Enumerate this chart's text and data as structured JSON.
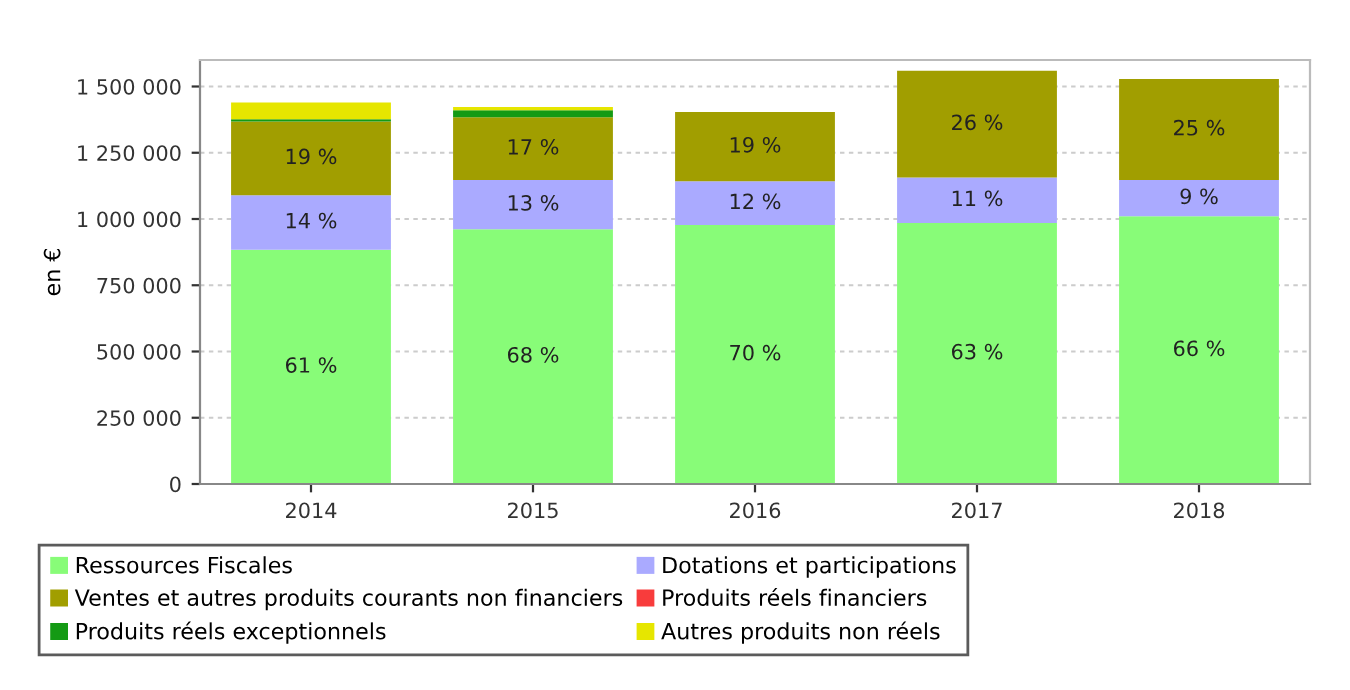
{
  "chart_data": {
    "type": "bar",
    "stacked": true,
    "ylabel": "en €",
    "categories": [
      "2014",
      "2015",
      "2016",
      "2017",
      "2018"
    ],
    "series": [
      {
        "name": "Ressources Fiscales",
        "color": "#88fc78",
        "values": [
          884000,
          961000,
          977000,
          985000,
          1010000
        ]
      },
      {
        "name": "Dotations et participations",
        "color": "#aaaaff",
        "values": [
          206000,
          186000,
          165000,
          172000,
          137000
        ]
      },
      {
        "name": "Ventes et autres produits courants non financiers",
        "color": "#a19e00",
        "values": [
          278000,
          237000,
          262000,
          402000,
          381000
        ]
      },
      {
        "name": "Produits réels financiers",
        "color": "#f83c3c",
        "values": [
          null,
          null,
          null,
          null,
          null
        ]
      },
      {
        "name": "Produits réels exceptionnels",
        "color": "#149a14",
        "values": [
          8000,
          26000,
          null,
          null,
          null
        ]
      },
      {
        "name": "Autres produits non réels",
        "color": "#e6e600",
        "values": [
          64000,
          13000,
          null,
          null,
          null
        ]
      }
    ],
    "annotations": [
      "61 %",
      "68 %",
      "70 %",
      "63 %",
      "66 %",
      "14 %",
      "13 %",
      "12 %",
      "11 %",
      "9 %",
      "19 %",
      "17 %",
      "19 %",
      "26 %",
      "25 %"
    ],
    "ylim": [
      0,
      1600000
    ],
    "yticks": [
      {
        "value": 0,
        "label": "0"
      },
      {
        "value": 250000,
        "label": "250 000"
      },
      {
        "value": 500000,
        "label": "500 000"
      },
      {
        "value": 750000,
        "label": "750 000"
      },
      {
        "value": 1000000,
        "label": "1 000 000"
      },
      {
        "value": 1250000,
        "label": "1 250 000"
      },
      {
        "value": 1500000,
        "label": "1 500 000"
      }
    ],
    "grid": "y",
    "legend": "bottom"
  }
}
